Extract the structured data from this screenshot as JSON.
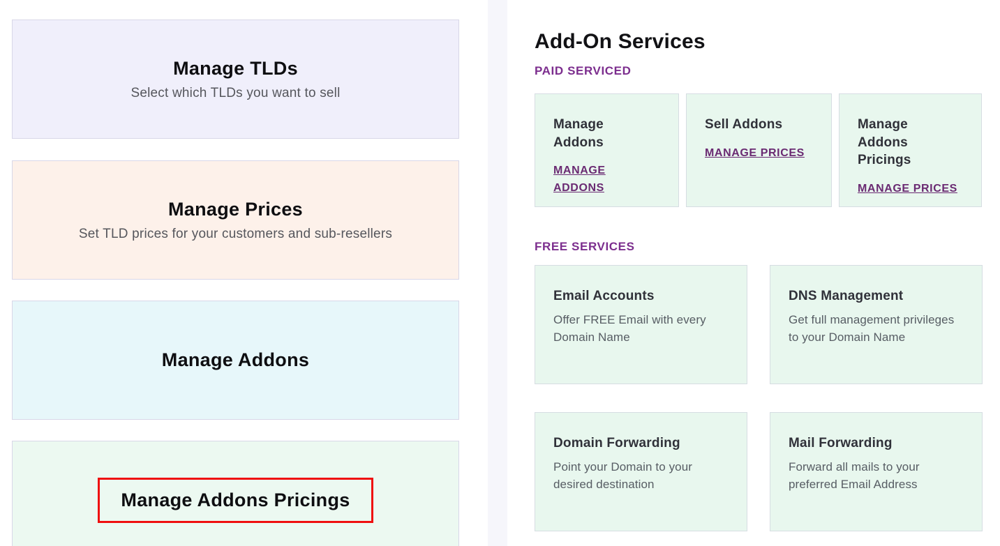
{
  "page": {
    "background": "#ffffff",
    "divider_color": "#f6f6fb"
  },
  "left_panel": {
    "cards": [
      {
        "title": "Manage TLDs",
        "subtitle": "Select which TLDs you want to sell",
        "bg": "#f0effb"
      },
      {
        "title": "Manage Prices",
        "subtitle": "Set TLD prices for your customers and sub-resellers",
        "bg": "#fdf1ea"
      },
      {
        "title": "Manage Addons",
        "subtitle": "",
        "bg": "#e7f7fa"
      },
      {
        "title": "Manage Addons Pricings",
        "subtitle": "",
        "bg": "#ecf9f1",
        "highlighted": true
      }
    ],
    "highlight": {
      "shape": "red-box",
      "color": "#ef1010"
    }
  },
  "right_panel": {
    "title": "Add-On Services",
    "colors": {
      "heading_purple": "#7c2e8e",
      "link_purple": "#6a2a72",
      "card_bg": "#e8f7ee"
    },
    "sections": [
      {
        "heading": "PAID SERVICED",
        "cards": [
          {
            "title": "Manage Addons",
            "link": "MANAGE ADDONS"
          },
          {
            "title": "Sell Addons",
            "link": "MANAGE PRICES"
          },
          {
            "title": "Manage Addons Pricings",
            "link": "MANAGE PRICES"
          }
        ]
      },
      {
        "heading": "FREE SERVICES",
        "cards": [
          {
            "title": "Email Accounts",
            "description": "Offer FREE Email with every Domain Name"
          },
          {
            "title": "DNS Management",
            "description": "Get full management privileges to your Domain Name"
          },
          {
            "title": "Domain Forwarding",
            "description": "Point your Domain to your desired destination"
          },
          {
            "title": "Mail Forwarding",
            "description": "Forward all mails to your preferred Email Address"
          }
        ]
      }
    ]
  }
}
